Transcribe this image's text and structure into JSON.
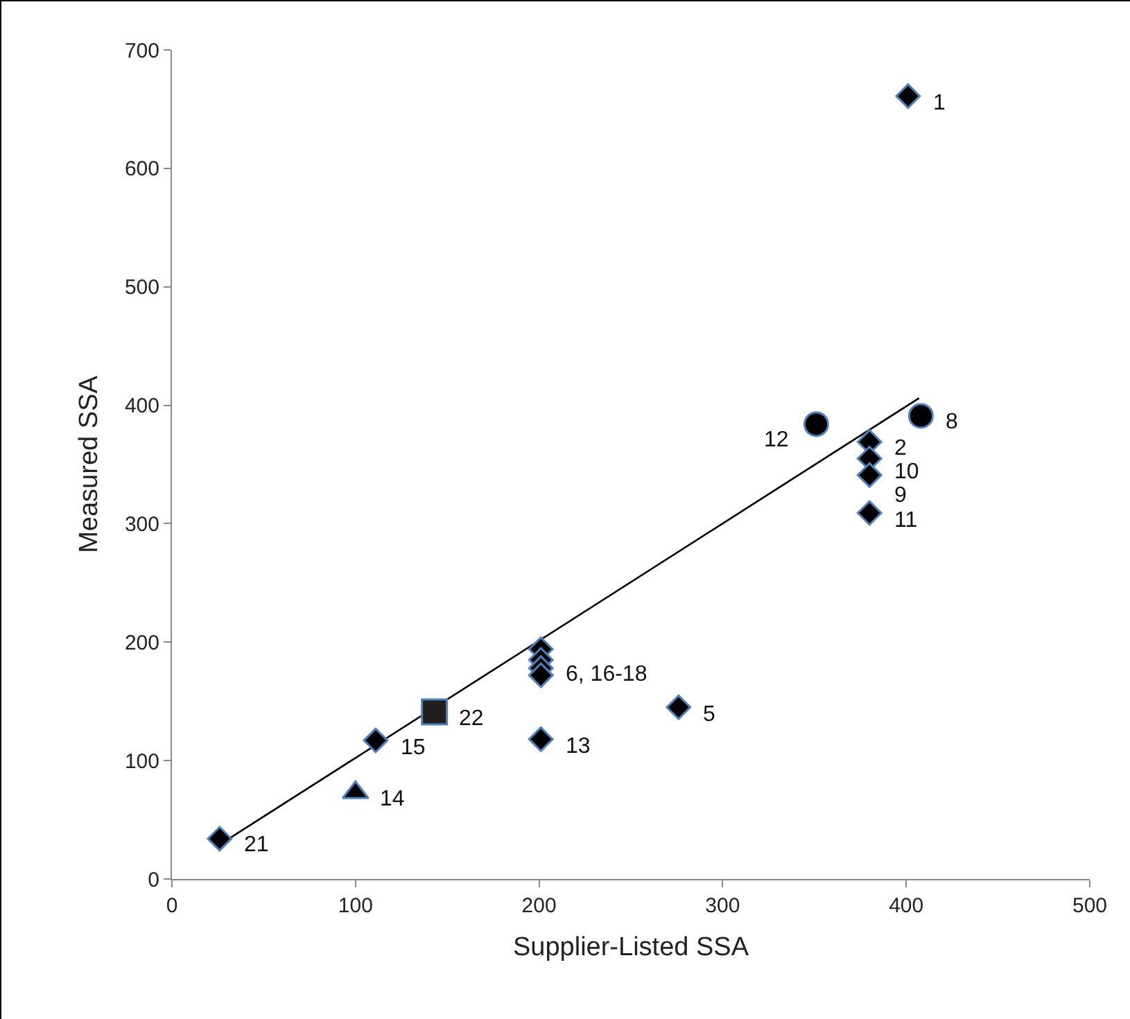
{
  "chart_data": {
    "type": "scatter",
    "xlabel": "Supplier-Listed SSA",
    "ylabel": "Measured SSA",
    "xlim": [
      0,
      500
    ],
    "xticks": [
      0,
      100,
      200,
      300,
      400,
      500
    ],
    "ylim": [
      0,
      700
    ],
    "yticks": [
      0,
      100,
      200,
      300,
      400,
      500,
      600,
      700
    ],
    "grid": false,
    "series": [
      {
        "type": "scatter",
        "marker": "diamond",
        "color": "#000000",
        "x": [
          401,
          380,
          380,
          380,
          380,
          276,
          201,
          201,
          201,
          201,
          201,
          111,
          26
        ],
        "values": [
          661,
          369,
          355,
          341,
          309,
          145,
          118,
          194,
          185,
          178,
          172,
          117,
          34
        ]
      },
      {
        "type": "scatter",
        "marker": "circle",
        "color": "#000000",
        "x": [
          408,
          351
        ],
        "values": [
          391,
          384
        ]
      },
      {
        "type": "scatter",
        "marker": "square",
        "color": "#231f20",
        "x": [
          143
        ],
        "values": [
          141
        ]
      },
      {
        "type": "scatter",
        "marker": "triangle",
        "color": "#000000",
        "x": [
          100
        ],
        "values": [
          73
        ]
      },
      {
        "type": "line",
        "marker": "none",
        "line_style": "solid",
        "color": "#000000",
        "x": [
          25,
          407
        ],
        "values": [
          28,
          406
        ]
      }
    ],
    "annotations": [
      {
        "text": "1",
        "x": 401,
        "y": 661
      },
      {
        "text": "2",
        "x": 380,
        "y": 369
      },
      {
        "text": "10",
        "x": 380,
        "y": 355
      },
      {
        "text": "9",
        "x": 380,
        "y": 341
      },
      {
        "text": "11",
        "x": 380,
        "y": 309
      },
      {
        "text": "8",
        "x": 408,
        "y": 391
      },
      {
        "text": "12",
        "x": 351,
        "y": 384
      },
      {
        "text": "6, 16-18",
        "x": 201,
        "y": 178
      },
      {
        "text": "5",
        "x": 276,
        "y": 145
      },
      {
        "text": "13",
        "x": 201,
        "y": 118
      },
      {
        "text": "22",
        "x": 143,
        "y": 141
      },
      {
        "text": "15",
        "x": 111,
        "y": 117
      },
      {
        "text": "14",
        "x": 100,
        "y": 73
      },
      {
        "text": "21",
        "x": 26,
        "y": 34
      }
    ]
  }
}
